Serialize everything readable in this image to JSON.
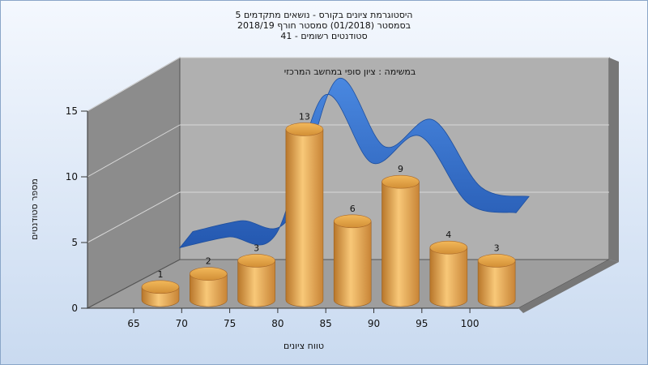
{
  "chart_data": {
    "type": "bar",
    "title_lines": [
      "היסטוגרמת ציונים בקורס - נושאים מתקדמים 5",
      "בסמסטר  (01/2018)  סמסטר חורף 2018/19",
      "סטודנטים רשומים - 41"
    ],
    "subtitle": "במשימה : ציון סופי במחשב המרכזי",
    "xlabel": "טווח ציונים",
    "ylabel": "מספר סטודנטים",
    "categories": [
      "65",
      "70",
      "75",
      "80",
      "85",
      "90",
      "95",
      "100"
    ],
    "values": [
      1,
      2,
      3,
      13,
      6,
      9,
      4,
      3
    ],
    "data_labels": [
      "1",
      "2",
      "3",
      "13",
      "6",
      "9",
      "4",
      "3"
    ],
    "yticks": [
      "0",
      "5",
      "10",
      "15"
    ],
    "ylim": [
      0,
      15
    ],
    "bar_color": "#f0b050",
    "curve_color": "#2a68c8",
    "curve_values": [
      2.2,
      3.0,
      3.2,
      13.5,
      8.5,
      10.5,
      5.5,
      4.8
    ],
    "grid": true
  }
}
